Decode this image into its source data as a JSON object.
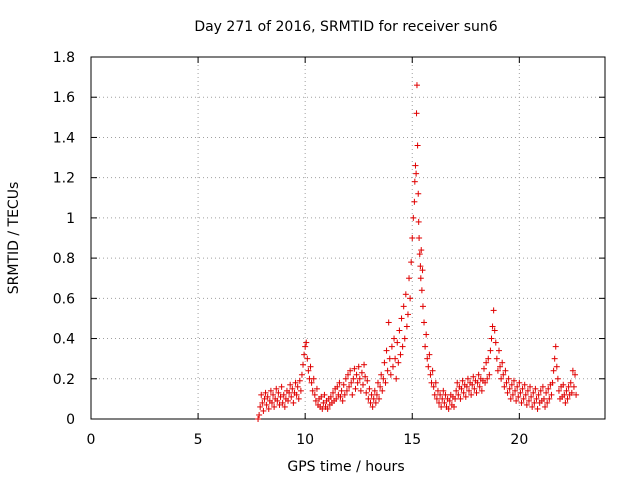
{
  "chart_data": {
    "type": "scatter",
    "title": "Day 271 of 2016, SRMTID for receiver sun6",
    "xlabel": "GPS time / hours",
    "ylabel": "SRMTID / TECUs",
    "xlim": [
      0,
      24
    ],
    "ylim": [
      0,
      1.8
    ],
    "xticks": [
      0,
      5,
      10,
      15,
      20
    ],
    "xtick_labels": [
      "0",
      "5",
      "10",
      "15",
      "20"
    ],
    "yticks": [
      0,
      0.2,
      0.4,
      0.6,
      0.8,
      1,
      1.2,
      1.4,
      1.6,
      1.8
    ],
    "ytick_labels": [
      "0",
      "0.2",
      "0.4",
      "0.6",
      "0.8",
      "1",
      "1.2",
      "1.4",
      "1.6",
      "1.8"
    ],
    "grid": true,
    "marker": "+",
    "series": [
      {
        "color": "#e00000",
        "points": [
          [
            7.8,
            0.0
          ],
          [
            7.85,
            0.02
          ],
          [
            7.9,
            0.06
          ],
          [
            7.95,
            0.12
          ],
          [
            8.0,
            0.08
          ],
          [
            8.05,
            0.04
          ],
          [
            8.1,
            0.1
          ],
          [
            8.15,
            0.13
          ],
          [
            8.2,
            0.07
          ],
          [
            8.25,
            0.11
          ],
          [
            8.3,
            0.05
          ],
          [
            8.35,
            0.09
          ],
          [
            8.4,
            0.14
          ],
          [
            8.45,
            0.08
          ],
          [
            8.5,
            0.12
          ],
          [
            8.55,
            0.06
          ],
          [
            8.6,
            0.1
          ],
          [
            8.65,
            0.15
          ],
          [
            8.7,
            0.09
          ],
          [
            8.75,
            0.13
          ],
          [
            8.8,
            0.07
          ],
          [
            8.85,
            0.11
          ],
          [
            8.9,
            0.16
          ],
          [
            8.95,
            0.08
          ],
          [
            9.0,
            0.12
          ],
          [
            9.05,
            0.06
          ],
          [
            9.1,
            0.1
          ],
          [
            9.15,
            0.14
          ],
          [
            9.2,
            0.09
          ],
          [
            9.25,
            0.13
          ],
          [
            9.3,
            0.17
          ],
          [
            9.35,
            0.11
          ],
          [
            9.4,
            0.15
          ],
          [
            9.45,
            0.08
          ],
          [
            9.5,
            0.13
          ],
          [
            9.55,
            0.18
          ],
          [
            9.6,
            0.12
          ],
          [
            9.65,
            0.16
          ],
          [
            9.7,
            0.1
          ],
          [
            9.75,
            0.19
          ],
          [
            9.8,
            0.14
          ],
          [
            9.85,
            0.22
          ],
          [
            9.9,
            0.27
          ],
          [
            9.95,
            0.32
          ],
          [
            10.0,
            0.36
          ],
          [
            10.05,
            0.38
          ],
          [
            10.1,
            0.3
          ],
          [
            10.15,
            0.24
          ],
          [
            10.2,
            0.2
          ],
          [
            10.25,
            0.26
          ],
          [
            10.3,
            0.18
          ],
          [
            10.35,
            0.14
          ],
          [
            10.4,
            0.2
          ],
          [
            10.45,
            0.12
          ],
          [
            10.5,
            0.09
          ],
          [
            10.55,
            0.15
          ],
          [
            10.6,
            0.07
          ],
          [
            10.65,
            0.1
          ],
          [
            10.7,
            0.06
          ],
          [
            10.75,
            0.11
          ],
          [
            10.8,
            0.05
          ],
          [
            10.85,
            0.08
          ],
          [
            10.9,
            0.12
          ],
          [
            10.95,
            0.06
          ],
          [
            11.0,
            0.09
          ],
          [
            11.05,
            0.05
          ],
          [
            11.1,
            0.1
          ],
          [
            11.15,
            0.07
          ],
          [
            11.2,
            0.11
          ],
          [
            11.25,
            0.08
          ],
          [
            11.3,
            0.13
          ],
          [
            11.35,
            0.09
          ],
          [
            11.4,
            0.15
          ],
          [
            11.45,
            0.1
          ],
          [
            11.5,
            0.16
          ],
          [
            11.55,
            0.12
          ],
          [
            11.6,
            0.18
          ],
          [
            11.65,
            0.11
          ],
          [
            11.7,
            0.14
          ],
          [
            11.75,
            0.09
          ],
          [
            11.8,
            0.17
          ],
          [
            11.85,
            0.12
          ],
          [
            11.9,
            0.2
          ],
          [
            11.95,
            0.14
          ],
          [
            12.0,
            0.22
          ],
          [
            12.05,
            0.16
          ],
          [
            12.1,
            0.24
          ],
          [
            12.15,
            0.18
          ],
          [
            12.2,
            0.12
          ],
          [
            12.25,
            0.2
          ],
          [
            12.3,
            0.25
          ],
          [
            12.35,
            0.15
          ],
          [
            12.4,
            0.22
          ],
          [
            12.45,
            0.18
          ],
          [
            12.5,
            0.26
          ],
          [
            12.55,
            0.2
          ],
          [
            12.6,
            0.14
          ],
          [
            12.65,
            0.23
          ],
          [
            12.7,
            0.17
          ],
          [
            12.75,
            0.27
          ],
          [
            12.8,
            0.21
          ],
          [
            12.85,
            0.13
          ],
          [
            12.9,
            0.19
          ],
          [
            12.95,
            0.1
          ],
          [
            13.0,
            0.15
          ],
          [
            13.05,
            0.08
          ],
          [
            13.1,
            0.12
          ],
          [
            13.15,
            0.06
          ],
          [
            13.2,
            0.1
          ],
          [
            13.25,
            0.14
          ],
          [
            13.3,
            0.08
          ],
          [
            13.35,
            0.12
          ],
          [
            13.4,
            0.18
          ],
          [
            13.45,
            0.1
          ],
          [
            13.5,
            0.16
          ],
          [
            13.55,
            0.22
          ],
          [
            13.6,
            0.14
          ],
          [
            13.65,
            0.2
          ],
          [
            13.7,
            0.28
          ],
          [
            13.75,
            0.18
          ],
          [
            13.8,
            0.34
          ],
          [
            13.85,
            0.24
          ],
          [
            13.9,
            0.48
          ],
          [
            13.95,
            0.3
          ],
          [
            14.0,
            0.22
          ],
          [
            14.05,
            0.36
          ],
          [
            14.1,
            0.26
          ],
          [
            14.15,
            0.4
          ],
          [
            14.2,
            0.3
          ],
          [
            14.25,
            0.2
          ],
          [
            14.3,
            0.38
          ],
          [
            14.35,
            0.28
          ],
          [
            14.4,
            0.44
          ],
          [
            14.45,
            0.32
          ],
          [
            14.5,
            0.5
          ],
          [
            14.55,
            0.36
          ],
          [
            14.6,
            0.56
          ],
          [
            14.65,
            0.4
          ],
          [
            14.7,
            0.62
          ],
          [
            14.75,
            0.46
          ],
          [
            14.8,
            0.52
          ],
          [
            14.85,
            0.7
          ],
          [
            14.9,
            0.6
          ],
          [
            14.95,
            0.78
          ],
          [
            15.0,
            0.9
          ],
          [
            15.05,
            1.0
          ],
          [
            15.1,
            1.08
          ],
          [
            15.12,
            1.18
          ],
          [
            15.15,
            1.26
          ],
          [
            15.18,
            1.22
          ],
          [
            15.2,
            1.52
          ],
          [
            15.22,
            1.66
          ],
          [
            15.25,
            1.36
          ],
          [
            15.28,
            1.12
          ],
          [
            15.3,
            0.98
          ],
          [
            15.32,
            0.9
          ],
          [
            15.35,
            0.82
          ],
          [
            15.38,
            0.76
          ],
          [
            15.4,
            0.7
          ],
          [
            15.42,
            0.84
          ],
          [
            15.45,
            0.64
          ],
          [
            15.48,
            0.74
          ],
          [
            15.5,
            0.56
          ],
          [
            15.55,
            0.48
          ],
          [
            15.6,
            0.36
          ],
          [
            15.65,
            0.42
          ],
          [
            15.7,
            0.3
          ],
          [
            15.75,
            0.26
          ],
          [
            15.8,
            0.32
          ],
          [
            15.85,
            0.22
          ],
          [
            15.9,
            0.18
          ],
          [
            15.95,
            0.24
          ],
          [
            16.0,
            0.16
          ],
          [
            16.05,
            0.12
          ],
          [
            16.1,
            0.18
          ],
          [
            16.15,
            0.1
          ],
          [
            16.2,
            0.14
          ],
          [
            16.25,
            0.08
          ],
          [
            16.3,
            0.12
          ],
          [
            16.35,
            0.06
          ],
          [
            16.4,
            0.1
          ],
          [
            16.45,
            0.14
          ],
          [
            16.5,
            0.08
          ],
          [
            16.55,
            0.12
          ],
          [
            16.6,
            0.06
          ],
          [
            16.65,
            0.1
          ],
          [
            16.7,
            0.05
          ],
          [
            16.75,
            0.09
          ],
          [
            16.8,
            0.12
          ],
          [
            16.85,
            0.07
          ],
          [
            16.9,
            0.11
          ],
          [
            16.95,
            0.06
          ],
          [
            17.0,
            0.1
          ],
          [
            17.05,
            0.14
          ],
          [
            17.1,
            0.18
          ],
          [
            17.15,
            0.12
          ],
          [
            17.2,
            0.16
          ],
          [
            17.25,
            0.1
          ],
          [
            17.3,
            0.15
          ],
          [
            17.35,
            0.19
          ],
          [
            17.4,
            0.13
          ],
          [
            17.45,
            0.17
          ],
          [
            17.5,
            0.11
          ],
          [
            17.55,
            0.16
          ],
          [
            17.6,
            0.2
          ],
          [
            17.65,
            0.14
          ],
          [
            17.7,
            0.18
          ],
          [
            17.75,
            0.12
          ],
          [
            17.8,
            0.17
          ],
          [
            17.85,
            0.21
          ],
          [
            17.9,
            0.15
          ],
          [
            17.95,
            0.19
          ],
          [
            18.0,
            0.13
          ],
          [
            18.05,
            0.18
          ],
          [
            18.1,
            0.22
          ],
          [
            18.15,
            0.16
          ],
          [
            18.2,
            0.2
          ],
          [
            18.25,
            0.14
          ],
          [
            18.3,
            0.19
          ],
          [
            18.35,
            0.25
          ],
          [
            18.4,
            0.18
          ],
          [
            18.45,
            0.28
          ],
          [
            18.5,
            0.2
          ],
          [
            18.55,
            0.3
          ],
          [
            18.6,
            0.22
          ],
          [
            18.65,
            0.34
          ],
          [
            18.7,
            0.4
          ],
          [
            18.75,
            0.46
          ],
          [
            18.8,
            0.54
          ],
          [
            18.85,
            0.44
          ],
          [
            18.9,
            0.38
          ],
          [
            18.95,
            0.3
          ],
          [
            19.0,
            0.24
          ],
          [
            19.05,
            0.34
          ],
          [
            19.1,
            0.26
          ],
          [
            19.15,
            0.2
          ],
          [
            19.2,
            0.28
          ],
          [
            19.25,
            0.22
          ],
          [
            19.3,
            0.16
          ],
          [
            19.35,
            0.24
          ],
          [
            19.4,
            0.18
          ],
          [
            19.45,
            0.13
          ],
          [
            19.5,
            0.2
          ],
          [
            19.55,
            0.15
          ],
          [
            19.6,
            0.1
          ],
          [
            19.65,
            0.17
          ],
          [
            19.7,
            0.12
          ],
          [
            19.75,
            0.19
          ],
          [
            19.8,
            0.14
          ],
          [
            19.85,
            0.09
          ],
          [
            19.9,
            0.16
          ],
          [
            19.95,
            0.11
          ],
          [
            20.0,
            0.18
          ],
          [
            20.05,
            0.13
          ],
          [
            20.1,
            0.08
          ],
          [
            20.15,
            0.15
          ],
          [
            20.2,
            0.1
          ],
          [
            20.25,
            0.17
          ],
          [
            20.3,
            0.12
          ],
          [
            20.35,
            0.07
          ],
          [
            20.4,
            0.14
          ],
          [
            20.45,
            0.09
          ],
          [
            20.5,
            0.16
          ],
          [
            20.55,
            0.11
          ],
          [
            20.6,
            0.06
          ],
          [
            20.65,
            0.13
          ],
          [
            20.7,
            0.08
          ],
          [
            20.75,
            0.15
          ],
          [
            20.8,
            0.1
          ],
          [
            20.85,
            0.05
          ],
          [
            20.9,
            0.12
          ],
          [
            20.95,
            0.08
          ],
          [
            21.0,
            0.14
          ],
          [
            21.05,
            0.09
          ],
          [
            21.1,
            0.16
          ],
          [
            21.15,
            0.1
          ],
          [
            21.2,
            0.06
          ],
          [
            21.25,
            0.13
          ],
          [
            21.3,
            0.08
          ],
          [
            21.35,
            0.15
          ],
          [
            21.4,
            0.1
          ],
          [
            21.45,
            0.17
          ],
          [
            21.5,
            0.12
          ],
          [
            21.55,
            0.18
          ],
          [
            21.6,
            0.24
          ],
          [
            21.65,
            0.3
          ],
          [
            21.7,
            0.36
          ],
          [
            21.75,
            0.26
          ],
          [
            21.8,
            0.2
          ],
          [
            21.85,
            0.14
          ],
          [
            21.9,
            0.1
          ],
          [
            21.95,
            0.16
          ],
          [
            22.0,
            0.11
          ],
          [
            22.05,
            0.17
          ],
          [
            22.1,
            0.12
          ],
          [
            22.15,
            0.08
          ],
          [
            22.2,
            0.14
          ],
          [
            22.25,
            0.1
          ],
          [
            22.3,
            0.16
          ],
          [
            22.35,
            0.12
          ],
          [
            22.4,
            0.18
          ],
          [
            22.45,
            0.13
          ],
          [
            22.5,
            0.24
          ],
          [
            22.55,
            0.16
          ],
          [
            22.6,
            0.22
          ],
          [
            22.65,
            0.12
          ]
        ]
      }
    ]
  }
}
